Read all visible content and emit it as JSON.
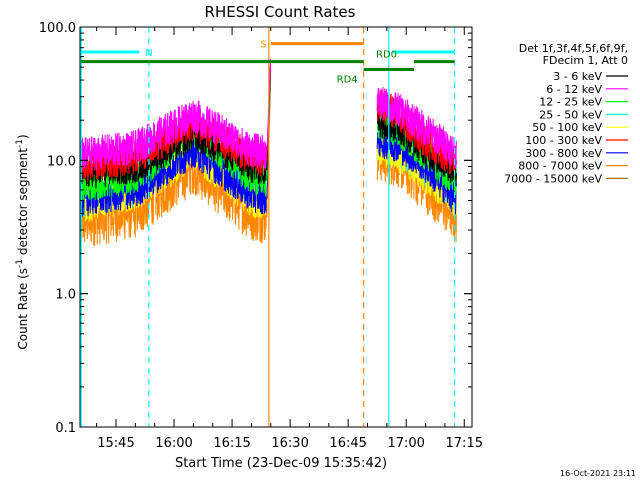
{
  "footer": {
    "timestamp": "16-Oct-2021 23:11"
  },
  "chart_data": {
    "type": "line",
    "title": "RHESSI Count Rates",
    "xlabel": "Start Time (23-Dec-09 15:35:42)",
    "ylabel_main": "Count Rate (s",
    "ylabel_sup": "-1",
    "ylabel_tail": " detector segment",
    "ylabel_sup2": "-1",
    "ylabel_close": ")",
    "y_scale": "log",
    "ylim": [
      0.1,
      100.0
    ],
    "xlim": [
      "15:35:42",
      "17:17:00"
    ],
    "x_ticks": [
      "15:45",
      "16:00",
      "16:15",
      "16:30",
      "16:45",
      "17:00",
      "17:15"
    ],
    "y_ticks": [
      "0.1",
      "1.0",
      "10.0",
      "100.0"
    ],
    "grid": false,
    "background": "#ffffff",
    "legend": {
      "position": "right",
      "header": [
        "Det 1f,3f,4f,5f,6f,9f,",
        "FDecim 1, Att 0"
      ]
    },
    "series": [
      {
        "name": "3 - 6 keV",
        "color": "#000000",
        "x": [
          "15:35:42",
          "15:50",
          "16:05",
          "16:20",
          "16:24",
          "16:25",
          "16:53",
          "16:58",
          "17:05",
          "17:13"
        ],
        "y": [
          8.0,
          9.0,
          16.0,
          9.0,
          8.5,
          60,
          20,
          18,
          12,
          8.5
        ]
      },
      {
        "name": "6 - 12 keV",
        "color": "#ff00ff",
        "x": [
          "15:35:42",
          "15:50",
          "16:05",
          "16:20",
          "16:24",
          "16:25",
          "16:53",
          "16:58",
          "17:05",
          "17:13"
        ],
        "y": [
          11.0,
          12.5,
          22.0,
          12.0,
          11.5,
          62,
          27,
          24,
          17,
          11.5
        ]
      },
      {
        "name": "12 - 25 keV",
        "color": "#00ff00",
        "x": [
          "15:35:42",
          "15:50",
          "16:05",
          "16:20",
          "16:24",
          "16:25",
          "16:53",
          "16:58",
          "17:05",
          "17:13"
        ],
        "y": [
          6.5,
          7.5,
          17.0,
          7.5,
          7.0,
          58,
          19,
          17,
          11,
          7.0
        ]
      },
      {
        "name": "25 - 50 keV",
        "color": "#00ffff",
        "x": [
          "15:35:42",
          "15:50",
          "16:05",
          "16:20",
          "16:24",
          "16:25",
          "16:53",
          "16:58",
          "17:05",
          "17:13"
        ],
        "y": [
          5.0,
          6.0,
          13.5,
          5.8,
          5.5,
          55,
          13,
          12,
          8.5,
          5.5
        ]
      },
      {
        "name": "50 - 100 keV",
        "color": "#ffff00",
        "x": [
          "15:35:42",
          "15:50",
          "16:05",
          "16:20",
          "16:24",
          "16:25",
          "16:53",
          "16:58",
          "17:05",
          "17:13"
        ],
        "y": [
          4.5,
          5.5,
          11.5,
          5.0,
          4.8,
          50,
          12,
          11,
          7.5,
          4.8
        ]
      },
      {
        "name": "100 - 300 keV",
        "color": "#ff0000",
        "x": [
          "15:35:42",
          "15:50",
          "16:05",
          "16:20",
          "16:24",
          "16:25",
          "16:53",
          "16:58",
          "17:05",
          "17:13"
        ],
        "y": [
          9.0,
          10.5,
          19.0,
          10.5,
          10.0,
          60,
          26,
          22,
          14,
          9.5
        ]
      },
      {
        "name": "300 - 800 keV",
        "color": "#0000ff",
        "x": [
          "15:35:42",
          "15:50",
          "16:05",
          "16:20",
          "16:24",
          "16:25",
          "16:53",
          "16:58",
          "17:05",
          "17:13"
        ],
        "y": [
          5.0,
          5.8,
          12.0,
          5.5,
          5.2,
          52,
          14,
          13,
          9.0,
          5.0
        ]
      },
      {
        "name": "800 - 7000 keV",
        "color": "#ff8800",
        "x": [
          "15:35:42",
          "15:50",
          "16:05",
          "16:20",
          "16:24",
          "16:25",
          "16:53",
          "16:58",
          "17:05",
          "17:13"
        ],
        "y": [
          3.5,
          4.2,
          9.0,
          4.0,
          3.8,
          45,
          11,
          10,
          6.5,
          3.8
        ]
      },
      {
        "name": "7000 - 15000 keV",
        "color": "#aa7700",
        "x": [],
        "y": []
      }
    ],
    "vertical_lines": [
      {
        "x": "15:36:00",
        "color": "#00ffff",
        "style": "solid"
      },
      {
        "x": "15:53:30",
        "color": "#00ffff",
        "style": "dashed"
      },
      {
        "x": "16:24:30",
        "color": "#ff8800",
        "style": "solid"
      },
      {
        "x": "16:49:00",
        "color": "#ff8800",
        "style": "dashed"
      },
      {
        "x": "16:55:30",
        "color": "#00ffff",
        "style": "solid"
      },
      {
        "x": "17:12:30",
        "color": "#00ffff",
        "style": "dashed"
      }
    ],
    "gaps": [
      {
        "from": "16:25:00",
        "to": "16:52:30"
      }
    ],
    "state_bars": [
      {
        "label": "N",
        "color": "#00ffff",
        "y": 65,
        "segments": [
          [
            "15:36:00",
            "15:51:00"
          ],
          [
            "16:56:30",
            "17:12:30"
          ]
        ]
      },
      {
        "label": "S",
        "color": "#ff8800",
        "y": 75,
        "segments": [
          [
            "16:25:00",
            "16:49:00"
          ]
        ]
      },
      {
        "label": "RD0",
        "color": "#008000",
        "y": 55,
        "segments": [
          [
            "15:36:00",
            "16:49:00"
          ],
          [
            "17:02:00",
            "17:12:30"
          ]
        ]
      },
      {
        "label": "RD4",
        "color": "#008000",
        "y": 48,
        "segments": [
          [
            "16:49:00",
            "17:02:00"
          ]
        ]
      }
    ]
  }
}
